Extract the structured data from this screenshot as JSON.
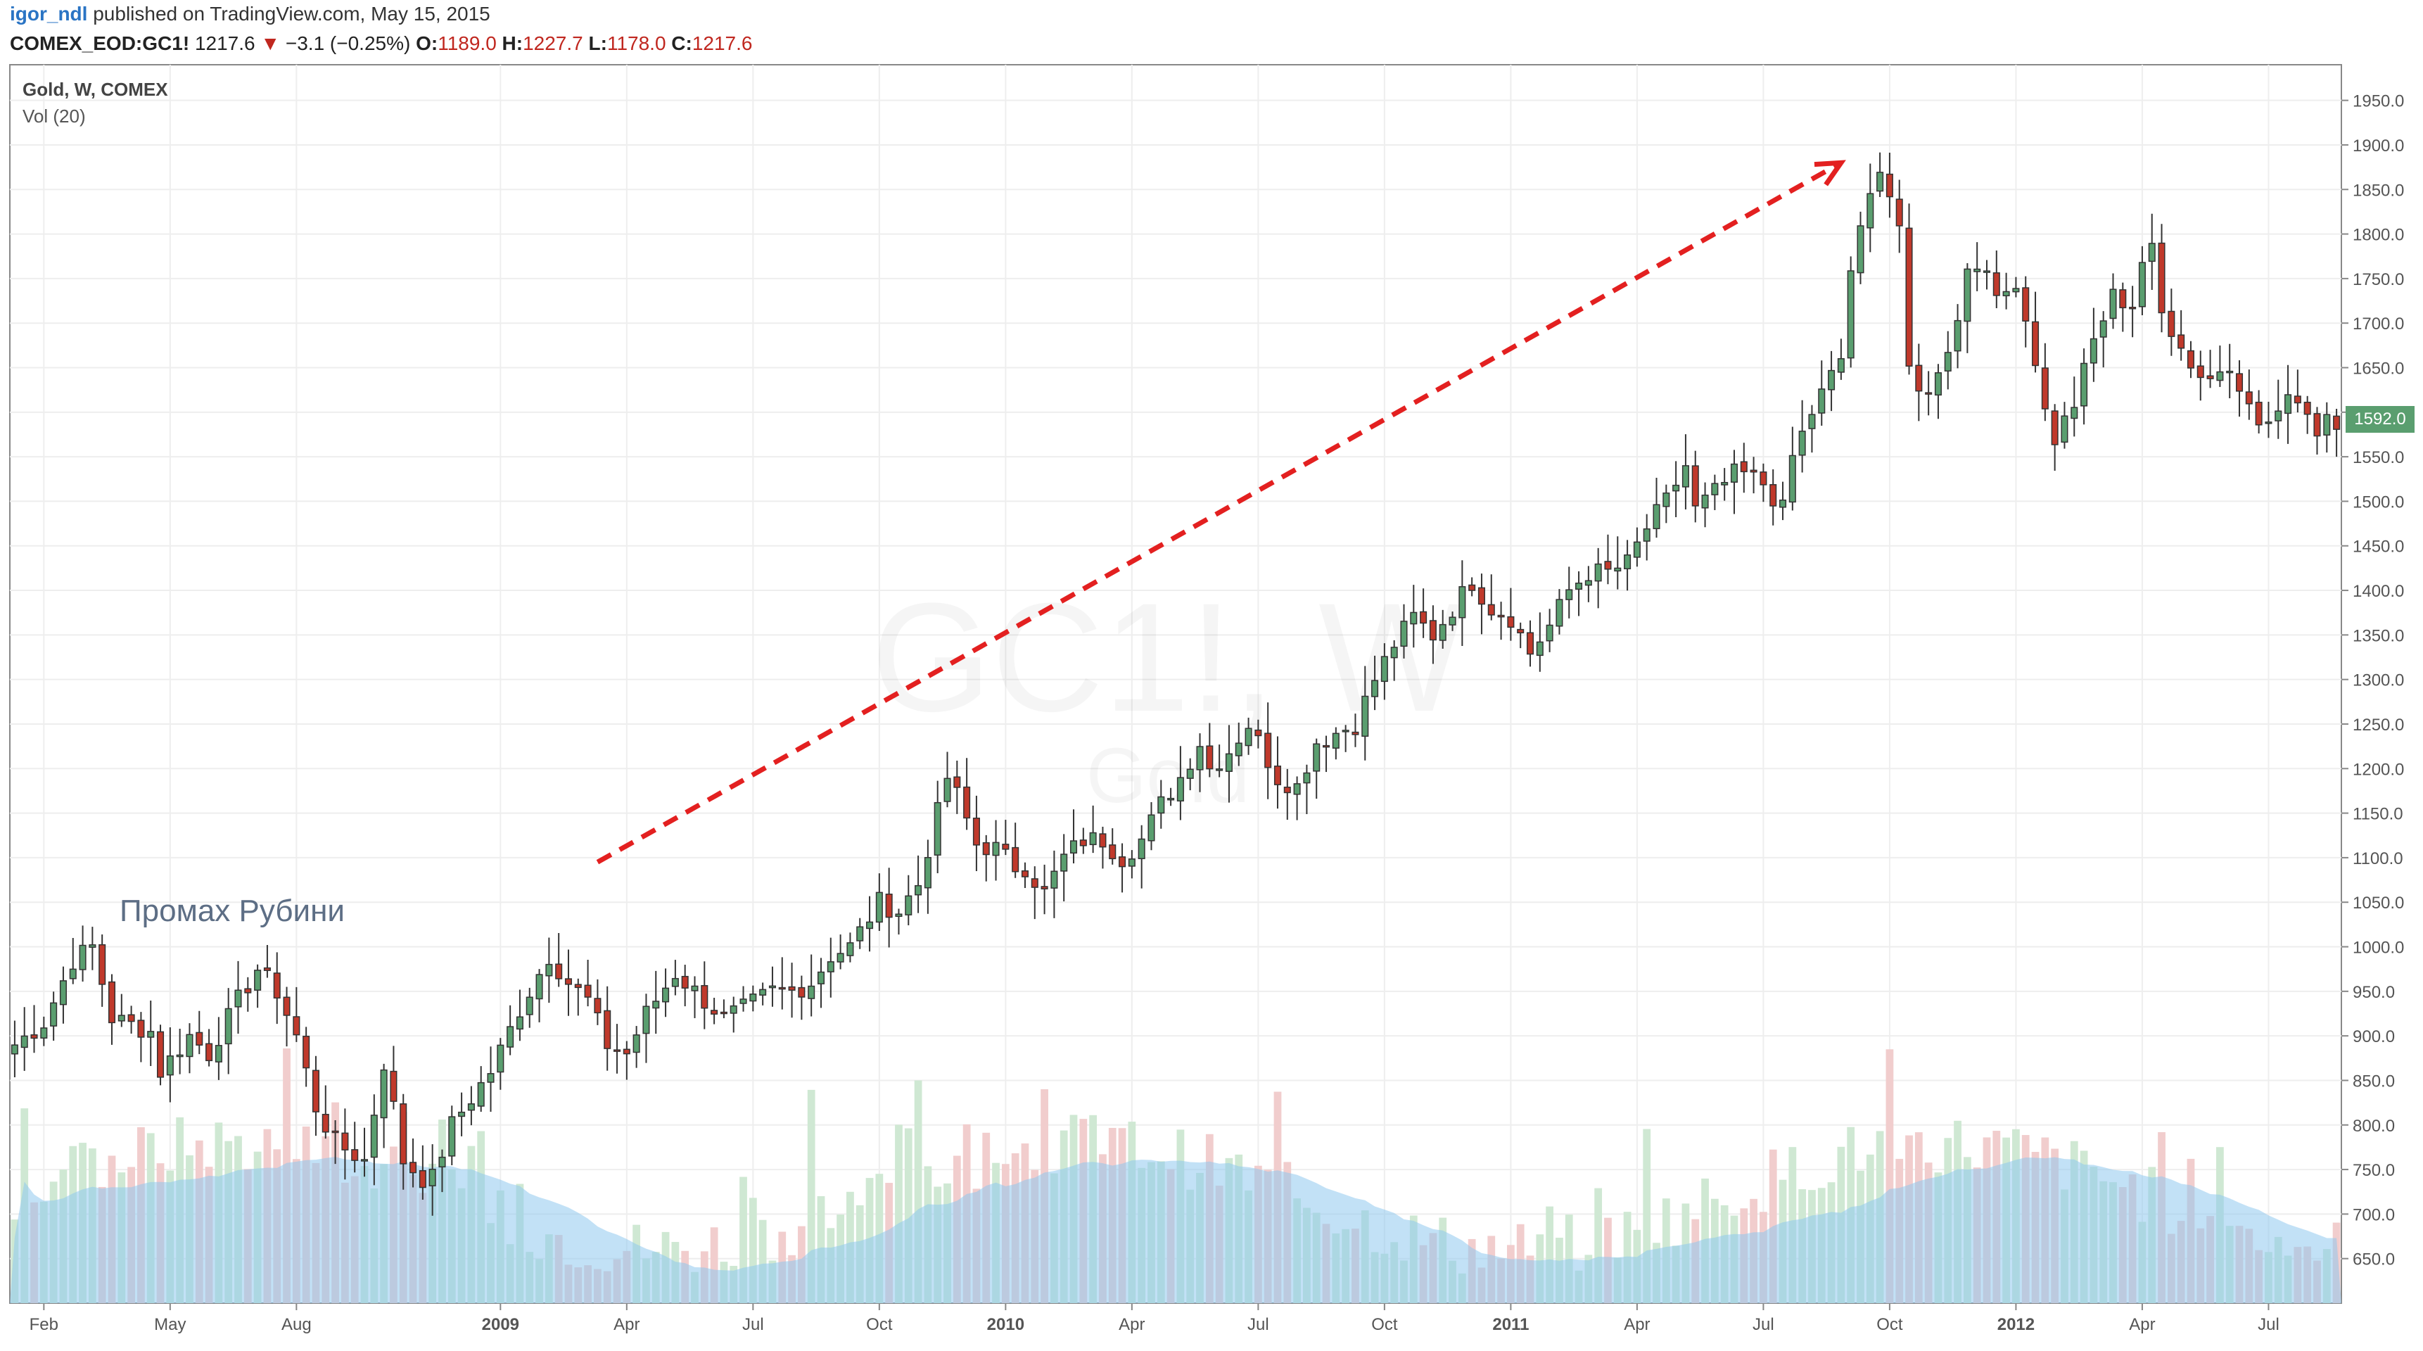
{
  "header": {
    "author": "igor_ndl",
    "published_text": "published on TradingView.com, May 15, 2015",
    "symbol": "COMEX_EOD:GC1!",
    "last": "1217.6",
    "change": "−3.1 (−0.25%)",
    "open_label": "O:",
    "open": "1189.0",
    "high_label": "H:",
    "high": "1227.7",
    "low_label": "L:",
    "low": "1178.0",
    "close_label": "C:",
    "close": "1217.6"
  },
  "legend": {
    "title": "Gold, W, COMEX",
    "volume": "Vol (20)"
  },
  "watermark": {
    "symbol": "GC1!, W",
    "name": "Gold"
  },
  "annotation": "Промах Рубини",
  "price_tag": "1592.0",
  "colors": {
    "up": "#5a9e6f",
    "down": "#c0392b",
    "arrow": "#e32020",
    "vol_up": "#cfe8d3",
    "vol_down": "#f1cdcd",
    "vol_ma": "#8fc8ef",
    "grid": "#eeeeee",
    "axis_text": "#555555"
  },
  "chart_data": {
    "type": "candlestick",
    "title": "Gold, W, COMEX",
    "y_axis_ticks": [
      "650.0",
      "700.0",
      "750.0",
      "800.0",
      "850.0",
      "900.0",
      "950.0",
      "1000.0",
      "1050.0",
      "1100.0",
      "1150.0",
      "1200.0",
      "1250.0",
      "1300.0",
      "1350.0",
      "1400.0",
      "1450.0",
      "1500.0",
      "1550.0",
      "1600.0",
      "1650.0",
      "1700.0",
      "1750.0",
      "1800.0",
      "1850.0",
      "1900.0",
      "1950.0"
    ],
    "ylim": [
      600,
      1990
    ],
    "x_axis_labels": [
      {
        "label": "Feb",
        "week": 3
      },
      {
        "label": "May",
        "week": 16
      },
      {
        "label": "Aug",
        "week": 29
      },
      {
        "label": "2009",
        "week": 50
      },
      {
        "label": "Apr",
        "week": 63
      },
      {
        "label": "Jul",
        "week": 76
      },
      {
        "label": "Oct",
        "week": 89
      },
      {
        "label": "2010",
        "week": 102
      },
      {
        "label": "Apr",
        "week": 115
      },
      {
        "label": "Jul",
        "week": 128
      },
      {
        "label": "Oct",
        "week": 141
      },
      {
        "label": "2011",
        "week": 154
      },
      {
        "label": "Apr",
        "week": 167
      },
      {
        "label": "Jul",
        "week": 180
      },
      {
        "label": "Oct",
        "week": 193
      },
      {
        "label": "2012",
        "week": 206
      },
      {
        "label": "Apr",
        "week": 219
      },
      {
        "label": "Jul",
        "week": 232
      }
    ],
    "waypoints_close": [
      [
        0,
        890
      ],
      [
        3,
        915
      ],
      [
        6,
        985
      ],
      [
        8,
        1000
      ],
      [
        10,
        920
      ],
      [
        14,
        905
      ],
      [
        15,
        860
      ],
      [
        18,
        900
      ],
      [
        20,
        880
      ],
      [
        23,
        940
      ],
      [
        25,
        975
      ],
      [
        27,
        950
      ],
      [
        29,
        900
      ],
      [
        31,
        820
      ],
      [
        33,
        780
      ],
      [
        36,
        760
      ],
      [
        38,
        870
      ],
      [
        39,
        820
      ],
      [
        40,
        760
      ],
      [
        42,
        740
      ],
      [
        43,
        740
      ],
      [
        45,
        800
      ],
      [
        47,
        830
      ],
      [
        49,
        860
      ],
      [
        52,
        930
      ],
      [
        55,
        990
      ],
      [
        57,
        960
      ],
      [
        59,
        940
      ],
      [
        61,
        890
      ],
      [
        63,
        880
      ],
      [
        65,
        925
      ],
      [
        68,
        970
      ],
      [
        71,
        940
      ],
      [
        73,
        920
      ],
      [
        75,
        930
      ],
      [
        78,
        950
      ],
      [
        80,
        950
      ],
      [
        82,
        960
      ],
      [
        84,
        990
      ],
      [
        86,
        1000
      ],
      [
        89,
        1050
      ],
      [
        91,
        1040
      ],
      [
        93,
        1070
      ],
      [
        95,
        1150
      ],
      [
        96,
        1190
      ],
      [
        97,
        1170
      ],
      [
        99,
        1115
      ],
      [
        101,
        1110
      ],
      [
        103,
        1090
      ],
      [
        104,
        1090
      ],
      [
        106,
        1060
      ],
      [
        108,
        1100
      ],
      [
        110,
        1120
      ],
      [
        112,
        1120
      ],
      [
        114,
        1100
      ],
      [
        116,
        1120
      ],
      [
        118,
        1160
      ],
      [
        120,
        1190
      ],
      [
        122,
        1230
      ],
      [
        123,
        1200
      ],
      [
        125,
        1220
      ],
      [
        127,
        1250
      ],
      [
        128,
        1230
      ],
      [
        130,
        1190
      ],
      [
        132,
        1180
      ],
      [
        134,
        1230
      ],
      [
        136,
        1240
      ],
      [
        138,
        1250
      ],
      [
        140,
        1300
      ],
      [
        142,
        1340
      ],
      [
        144,
        1370
      ],
      [
        146,
        1350
      ],
      [
        148,
        1380
      ],
      [
        150,
        1410
      ],
      [
        152,
        1380
      ],
      [
        154,
        1370
      ],
      [
        156,
        1330
      ],
      [
        158,
        1360
      ],
      [
        160,
        1400
      ],
      [
        162,
        1420
      ],
      [
        164,
        1420
      ],
      [
        166,
        1430
      ],
      [
        168,
        1470
      ],
      [
        170,
        1500
      ],
      [
        172,
        1540
      ],
      [
        173,
        1490
      ],
      [
        175,
        1510
      ],
      [
        177,
        1530
      ],
      [
        178,
        1530
      ],
      [
        180,
        1520
      ],
      [
        182,
        1490
      ],
      [
        183,
        1550
      ],
      [
        185,
        1600
      ],
      [
        186,
        1620
      ],
      [
        188,
        1660
      ],
      [
        189,
        1760
      ],
      [
        191,
        1840
      ],
      [
        192,
        1880
      ],
      [
        194,
        1810
      ],
      [
        195,
        1640
      ],
      [
        196,
        1620
      ],
      [
        198,
        1640
      ],
      [
        200,
        1710
      ],
      [
        201,
        1760
      ],
      [
        203,
        1770
      ],
      [
        204,
        1720
      ],
      [
        206,
        1750
      ],
      [
        208,
        1660
      ],
      [
        209,
        1600
      ],
      [
        210,
        1570
      ],
      [
        212,
        1610
      ],
      [
        214,
        1680
      ],
      [
        216,
        1730
      ],
      [
        218,
        1720
      ],
      [
        219,
        1770
      ],
      [
        220,
        1780
      ],
      [
        221,
        1710
      ],
      [
        223,
        1680
      ],
      [
        224,
        1650
      ],
      [
        226,
        1640
      ],
      [
        228,
        1650
      ],
      [
        230,
        1620
      ],
      [
        231,
        1580
      ],
      [
        233,
        1600
      ],
      [
        235,
        1620
      ],
      [
        237,
        1580
      ],
      [
        238,
        1600
      ],
      [
        239,
        1592
      ]
    ],
    "weeks": 240,
    "volume": {
      "label": "Vol (20)",
      "avg_range": [
        710,
        808
      ],
      "spike_max": 955
    }
  }
}
